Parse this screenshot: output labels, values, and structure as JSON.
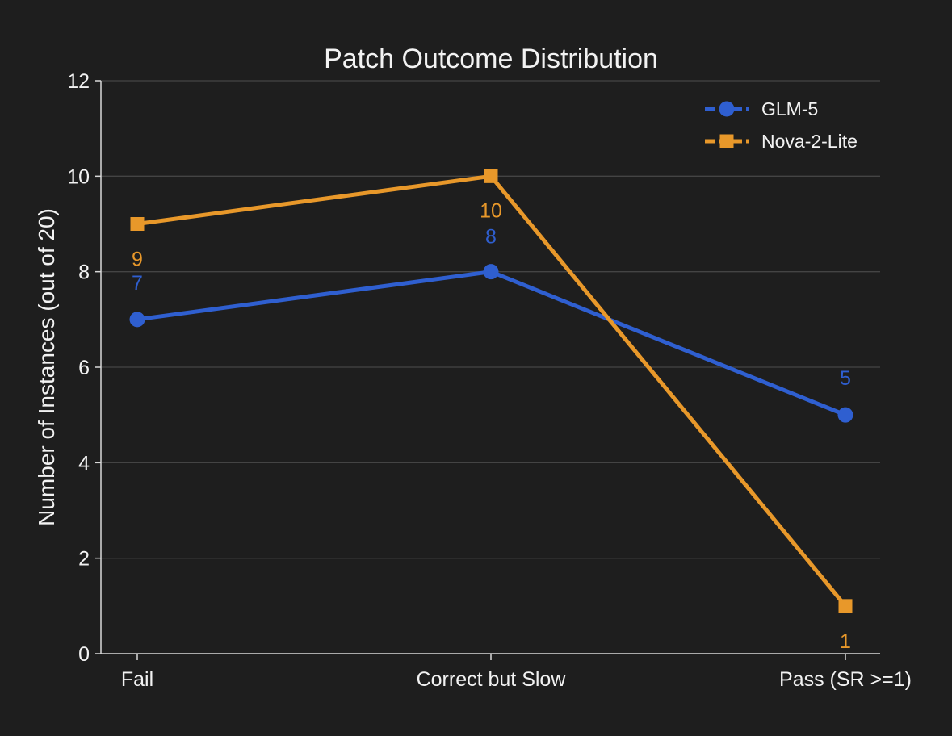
{
  "chart_data": {
    "type": "line",
    "title": "Patch Outcome Distribution",
    "xlabel": "",
    "ylabel": "Number of Instances (out of 20)",
    "categories": [
      "Fail",
      "Correct but Slow",
      "Pass (SR >=1)"
    ],
    "ylim": [
      0,
      12
    ],
    "yticks": [
      0,
      2,
      4,
      6,
      8,
      10,
      12
    ],
    "grid": true,
    "legend_position": "top-right",
    "series": [
      {
        "name": "GLM-5",
        "values": [
          7,
          8,
          5
        ],
        "color": "#2f5fd0",
        "marker": "circle"
      },
      {
        "name": "Nova-2-Lite",
        "values": [
          9,
          10,
          1
        ],
        "color": "#e8982a",
        "marker": "square"
      }
    ]
  }
}
